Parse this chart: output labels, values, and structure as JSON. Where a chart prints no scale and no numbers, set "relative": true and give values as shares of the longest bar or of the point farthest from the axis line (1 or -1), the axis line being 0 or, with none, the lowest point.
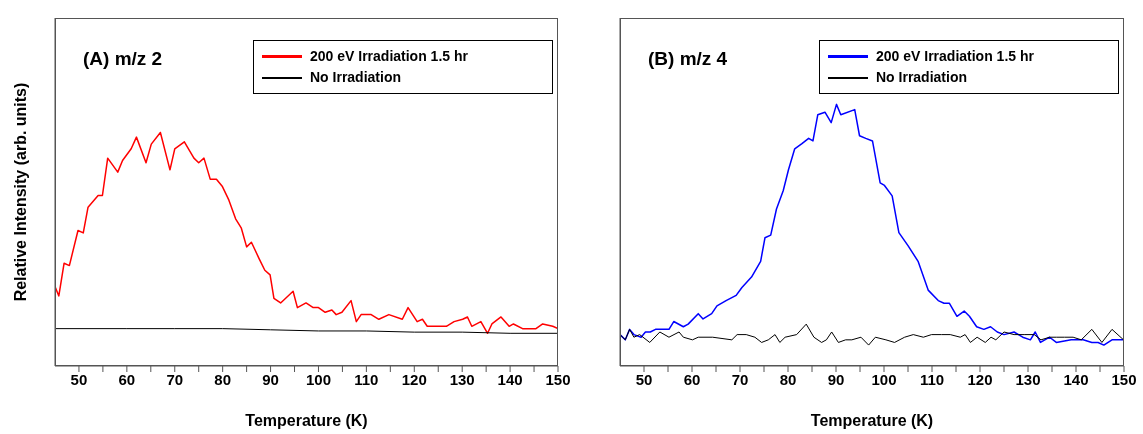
{
  "chart_data": [
    {
      "type": "line",
      "title": "(A) m/z 2",
      "xlabel": "Temperature (K)",
      "ylabel": "Relative Intensity (arb. units)",
      "relative": true,
      "xlim": [
        45,
        150
      ],
      "xticks": [
        50,
        {
          "value": 55,
          "label": null
        },
        60,
        {
          "value": 65,
          "label": null
        },
        70,
        {
          "value": 75,
          "label": null
        },
        80,
        {
          "value": 85,
          "label": null
        },
        90,
        {
          "value": 95,
          "label": null
        },
        100,
        {
          "value": 105,
          "label": null
        },
        110,
        {
          "value": 115,
          "label": null
        },
        120,
        {
          "value": 125,
          "label": null
        },
        130,
        {
          "value": 135,
          "label": null
        },
        140,
        {
          "value": 145,
          "label": null
        },
        150
      ],
      "legend": "top right",
      "marker": "none",
      "grid": false,
      "series": [
        {
          "name": "200 eV Irradiation 1.5 hr",
          "color": "#ff0000",
          "x": [
            45,
            45.8,
            46.9,
            48,
            49.8,
            50.9,
            51.9,
            54,
            54.9,
            56,
            58.1,
            59.1,
            60.9,
            62,
            64,
            65.1,
            67,
            69,
            70,
            72,
            74,
            75,
            76.1,
            77.4,
            78.7,
            79.9,
            81.3,
            82.7,
            83.9,
            85,
            86,
            87.6,
            88.8,
            89.9,
            90.7,
            92.1,
            94.7,
            95.6,
            97.4,
            98.9,
            100,
            101.4,
            102.8,
            103.7,
            104.9,
            106.8,
            107.9,
            108.9,
            111,
            112.6,
            114.7,
            117.5,
            118.7,
            120.6,
            121.7,
            122.7,
            124.1,
            125.9,
            126.7,
            128.3,
            130.1,
            131.1,
            132,
            133.9,
            135.3,
            136.2,
            138.1,
            139.8,
            140.7,
            142.6,
            144.4,
            145.4,
            146.8,
            148.9,
            150
          ],
          "values": [
            0.34,
            0.3,
            0.44,
            0.43,
            0.58,
            0.57,
            0.68,
            0.73,
            0.73,
            0.89,
            0.83,
            0.88,
            0.93,
            0.98,
            0.87,
            0.95,
            1,
            0.84,
            0.93,
            0.96,
            0.89,
            0.87,
            0.89,
            0.8,
            0.8,
            0.77,
            0.71,
            0.63,
            0.59,
            0.51,
            0.53,
            0.46,
            0.41,
            0.39,
            0.29,
            0.27,
            0.32,
            0.25,
            0.27,
            0.25,
            0.25,
            0.23,
            0.24,
            0.22,
            0.23,
            0.28,
            0.19,
            0.22,
            0.22,
            0.2,
            0.22,
            0.2,
            0.25,
            0.19,
            0.2,
            0.17,
            0.17,
            0.17,
            0.17,
            0.19,
            0.2,
            0.21,
            0.17,
            0.19,
            0.14,
            0.18,
            0.21,
            0.17,
            0.18,
            0.16,
            0.16,
            0.16,
            0.18,
            0.17,
            0.16
          ]
        },
        {
          "name": "No Irradiation",
          "color": "#000000",
          "x": [
            45,
            60,
            70,
            80,
            90,
            100,
            110,
            120,
            130,
            140,
            150
          ],
          "values": [
            0.16,
            0.16,
            0.16,
            0.16,
            0.155,
            0.15,
            0.15,
            0.145,
            0.145,
            0.14,
            0.14
          ]
        }
      ]
    },
    {
      "type": "line",
      "title": "(B) m/z 4",
      "xlabel": "Temperature (K)",
      "relative": true,
      "xlim": [
        45,
        150
      ],
      "xticks": [
        50,
        {
          "value": 55,
          "label": null
        },
        60,
        {
          "value": 65,
          "label": null
        },
        70,
        {
          "value": 75,
          "label": null
        },
        80,
        {
          "value": 85,
          "label": null
        },
        90,
        {
          "value": 95,
          "label": null
        },
        100,
        {
          "value": 105,
          "label": null
        },
        110,
        {
          "value": 115,
          "label": null
        },
        120,
        {
          "value": 125,
          "label": null
        },
        130,
        {
          "value": 135,
          "label": null
        },
        140,
        {
          "value": 145,
          "label": null
        },
        150
      ],
      "legend": "top right",
      "marker": "none",
      "grid": false,
      "series": [
        {
          "name": "200 eV Irradiation 1.5 hr",
          "color": "#0000ff",
          "x": [
            45,
            46.1,
            47,
            47.9,
            49.4,
            50.3,
            51.3,
            52.4,
            55.2,
            56.2,
            58.2,
            59.2,
            61.3,
            62.3,
            64.1,
            65.2,
            67.1,
            69.2,
            70.4,
            72.4,
            74.3,
            75.2,
            76.4,
            77.6,
            79,
            80.1,
            81.4,
            82.9,
            84.3,
            85.2,
            86.2,
            87.7,
            89,
            90.1,
            91,
            93.9,
            94.9,
            96.2,
            97.6,
            99.2,
            100.1,
            101.7,
            103.1,
            105,
            107.1,
            109.2,
            111.3,
            112.5,
            113.6,
            115.2,
            116.7,
            117.8,
            119.3,
            120.8,
            122.2,
            123.6,
            125,
            127.1,
            128.9,
            130.5,
            131.5,
            132.6,
            134.5,
            135.9,
            139,
            141.5,
            143.3,
            144.6,
            145.8,
            147.5,
            149.9
          ],
          "values": [
            0.12,
            0.1,
            0.14,
            0.12,
            0.11,
            0.13,
            0.13,
            0.14,
            0.14,
            0.17,
            0.15,
            0.16,
            0.2,
            0.18,
            0.2,
            0.23,
            0.25,
            0.27,
            0.3,
            0.34,
            0.4,
            0.49,
            0.5,
            0.6,
            0.67,
            0.75,
            0.83,
            0.85,
            0.87,
            0.86,
            0.96,
            0.97,
            0.93,
            1,
            0.96,
            0.98,
            0.88,
            0.87,
            0.86,
            0.7,
            0.69,
            0.65,
            0.51,
            0.46,
            0.4,
            0.29,
            0.25,
            0.24,
            0.24,
            0.19,
            0.21,
            0.19,
            0.15,
            0.14,
            0.15,
            0.13,
            0.12,
            0.13,
            0.11,
            0.1,
            0.13,
            0.09,
            0.11,
            0.09,
            0.1,
            0.1,
            0.09,
            0.09,
            0.08,
            0.1,
            0.1
          ]
        },
        {
          "name": "No Irradiation",
          "color": "#000000",
          "x": [
            45,
            46.1,
            47,
            47.9,
            49.1,
            51.2,
            53.3,
            55.2,
            57.3,
            58.2,
            60.1,
            61.3,
            64.3,
            68.3,
            69.4,
            71.3,
            73.1,
            74.5,
            75.9,
            77.3,
            78.3,
            79.4,
            81.8,
            83.8,
            85.4,
            87,
            88,
            89.1,
            90.5,
            92,
            93.3,
            95.2,
            96.8,
            98.2,
            100.4,
            102.2,
            104.3,
            106.1,
            108.2,
            109.9,
            112,
            113.8,
            115.9,
            116.9,
            118,
            119.4,
            121.1,
            122.3,
            123.3,
            125,
            127.1,
            129.2,
            131.3,
            132.7,
            134.5,
            135.9,
            137.6,
            139.4,
            141.1,
            143.3,
            145.4,
            147.5,
            149.9
          ],
          "values": [
            0.12,
            0.1,
            0.14,
            0.11,
            0.12,
            0.09,
            0.13,
            0.11,
            0.13,
            0.11,
            0.1,
            0.11,
            0.11,
            0.1,
            0.12,
            0.12,
            0.11,
            0.09,
            0.1,
            0.12,
            0.09,
            0.11,
            0.12,
            0.16,
            0.11,
            0.09,
            0.1,
            0.13,
            0.09,
            0.1,
            0.1,
            0.11,
            0.08,
            0.11,
            0.1,
            0.09,
            0.11,
            0.12,
            0.11,
            0.12,
            0.12,
            0.12,
            0.11,
            0.12,
            0.09,
            0.11,
            0.09,
            0.11,
            0.1,
            0.13,
            0.12,
            0.12,
            0.12,
            0.1,
            0.11,
            0.11,
            0.11,
            0.11,
            0.1,
            0.14,
            0.09,
            0.14,
            0.1
          ]
        }
      ]
    }
  ]
}
